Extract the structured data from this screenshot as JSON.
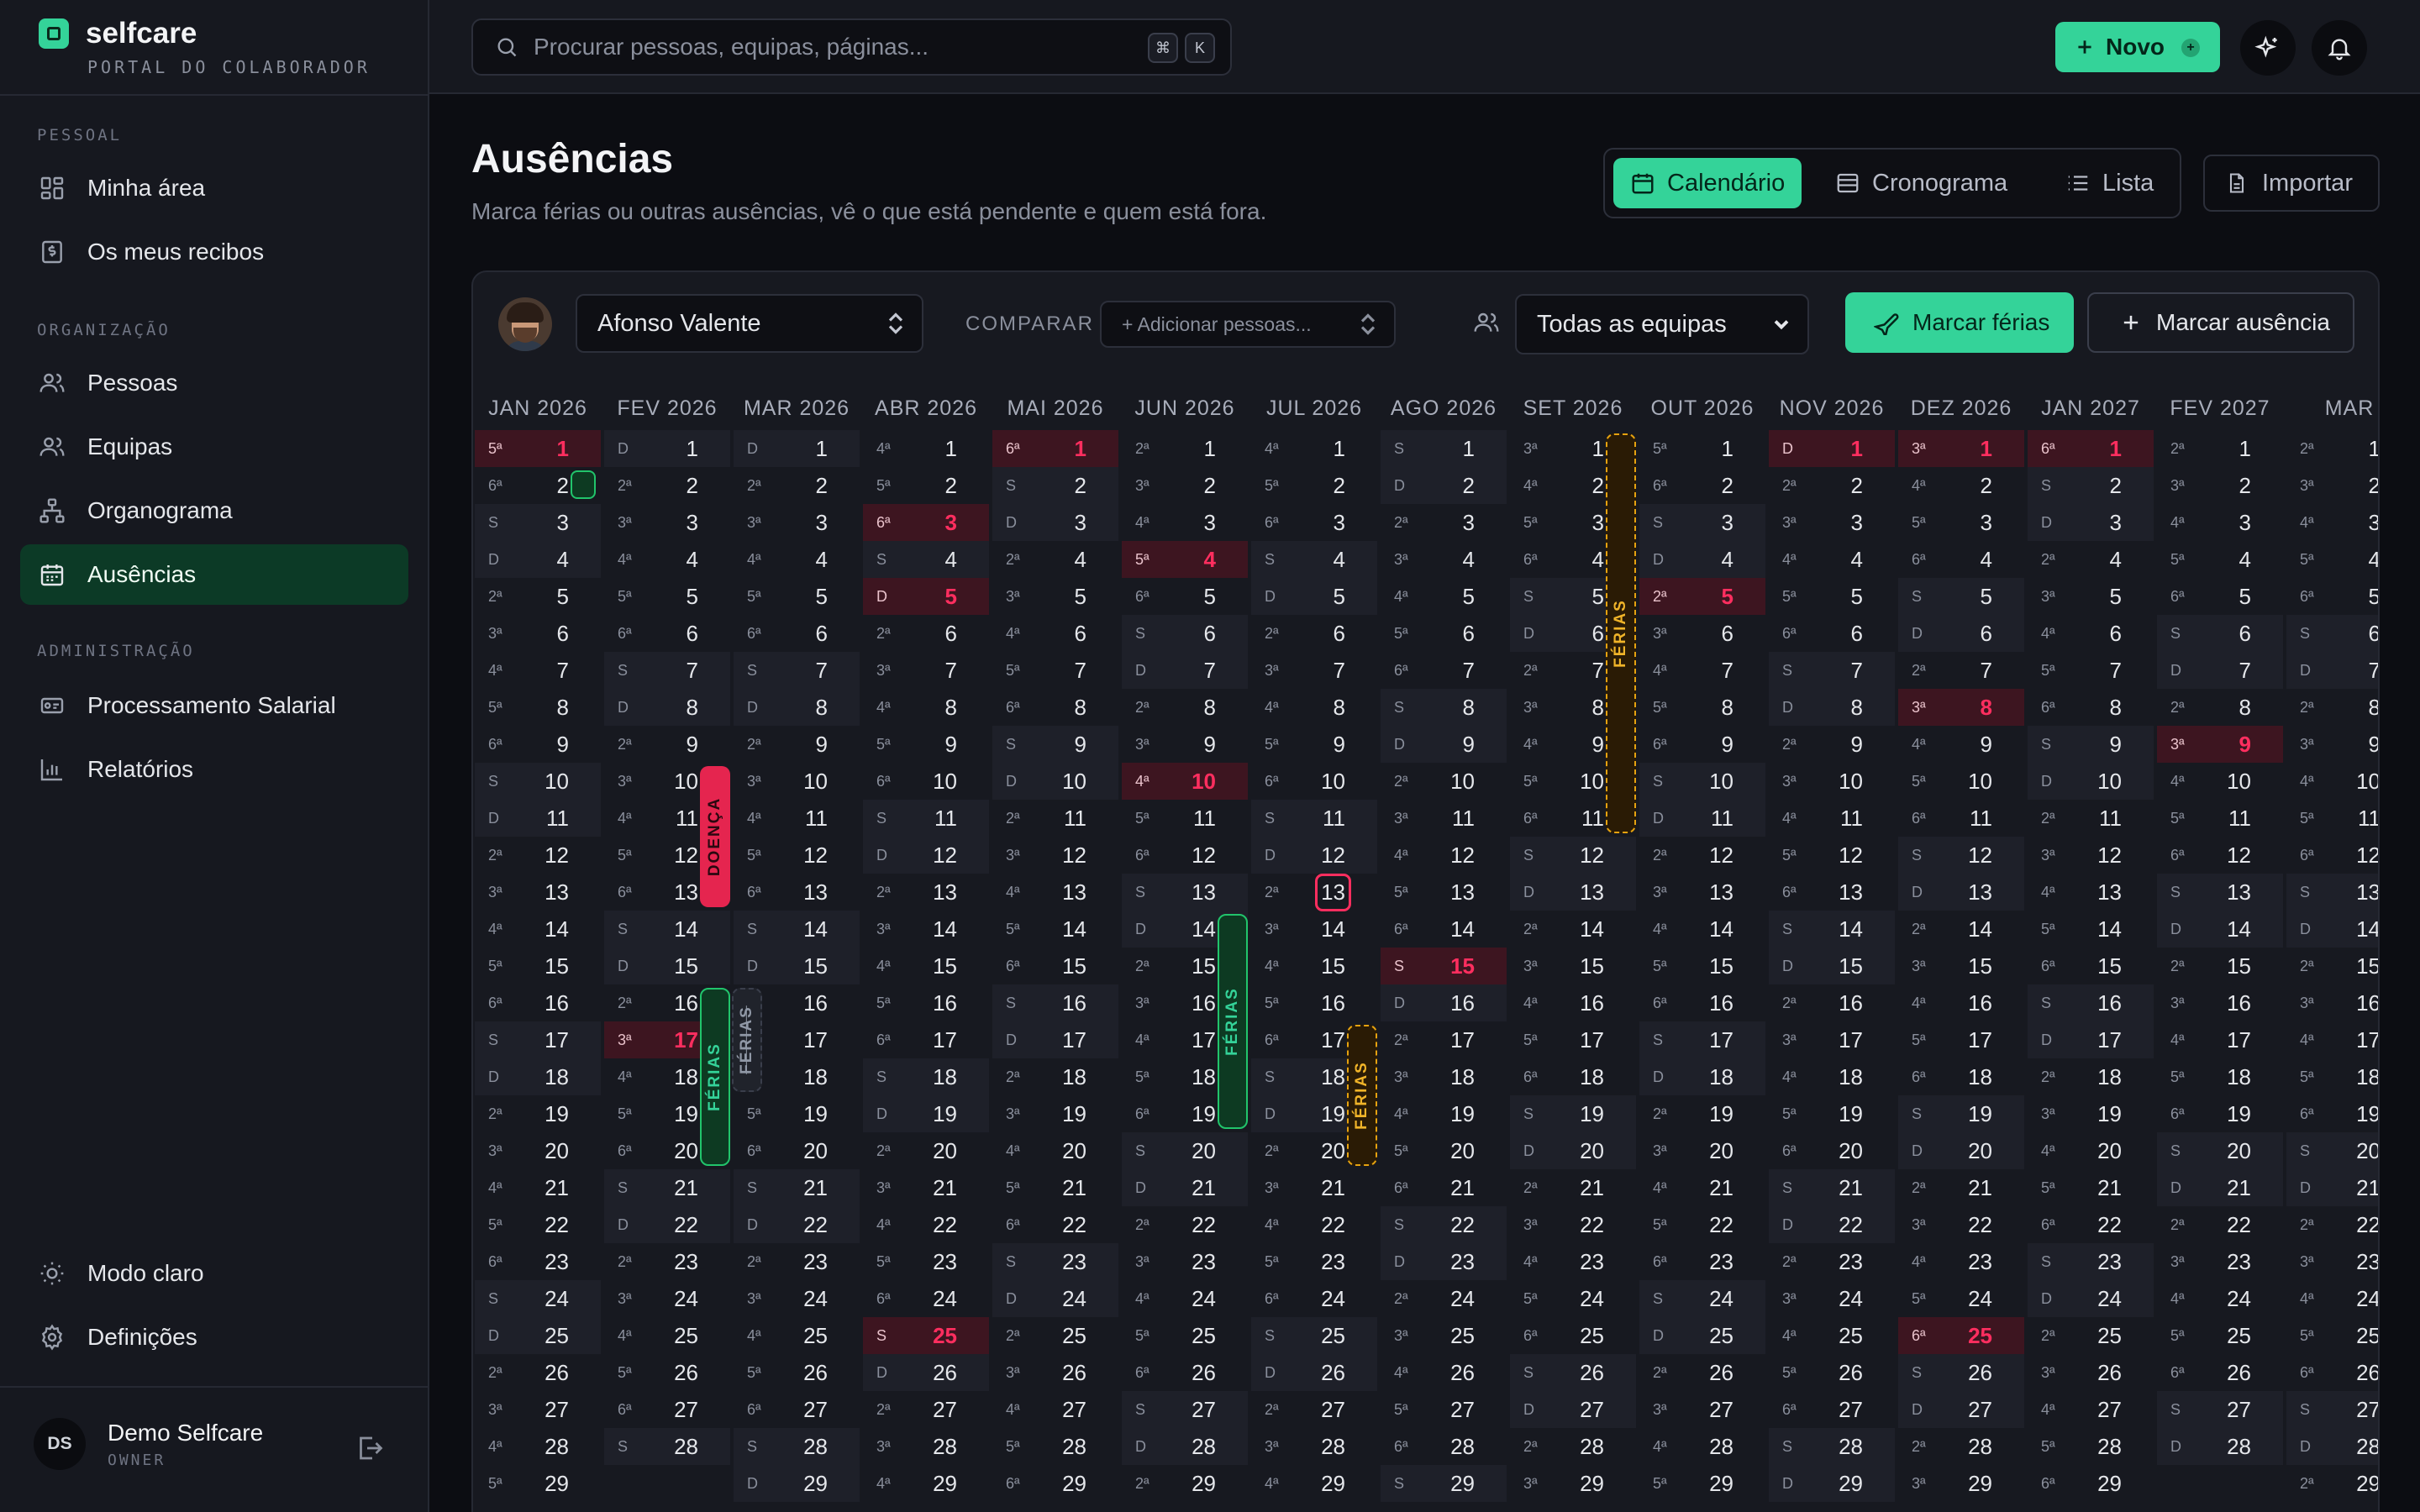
{
  "brand": {
    "name": "selfcare",
    "subtitle": "PORTAL DO COLABORADOR"
  },
  "sidebar": {
    "sections": [
      {
        "title": "PESSOAL",
        "items": [
          {
            "label": "Minha área",
            "icon": "dashboard-icon"
          },
          {
            "label": "Os meus recibos",
            "icon": "receipt-icon"
          }
        ]
      },
      {
        "title": "ORGANIZAÇÃO",
        "items": [
          {
            "label": "Pessoas",
            "icon": "people-icon"
          },
          {
            "label": "Equipas",
            "icon": "team-icon"
          },
          {
            "label": "Organograma",
            "icon": "org-chart-icon"
          },
          {
            "label": "Ausências",
            "icon": "calendar-icon",
            "active": true
          }
        ]
      },
      {
        "title": "ADMINISTRAÇÃO",
        "items": [
          {
            "label": "Processamento Salarial",
            "icon": "payroll-icon"
          },
          {
            "label": "Relatórios",
            "icon": "chart-icon"
          }
        ]
      }
    ],
    "footer": {
      "theme_toggle": "Modo claro",
      "settings": "Definições"
    },
    "user": {
      "initials": "DS",
      "name": "Demo Selfcare",
      "role": "OWNER"
    }
  },
  "topbar": {
    "search_placeholder": "Procurar pessoas, equipas, páginas...",
    "kbd": [
      "⌘",
      "K"
    ],
    "new_button": "Novo",
    "new_badge": "+"
  },
  "page": {
    "title": "Ausências",
    "subtitle": "Marca férias ou outras ausências, vê o que está pendente e quem está fora.",
    "views": [
      "Calendário",
      "Cronograma",
      "Lista"
    ],
    "active_view": "Calendário",
    "import_button": "Importar"
  },
  "toolbar": {
    "person": "Afonso Valente",
    "compare_label": "COMPARAR",
    "compare_placeholder": "+ Adicionar pessoas...",
    "team_filter": "Todas as equipas",
    "mark_vacation": "Marcar férias",
    "mark_absence": "Marcar ausência"
  },
  "calendar": {
    "months": [
      {
        "label": "JAN 2026",
        "year": 2026,
        "month": 1,
        "days": 29
      },
      {
        "label": "FEV 2026",
        "year": 2026,
        "month": 2,
        "days": 28
      },
      {
        "label": "MAR 2026",
        "year": 2026,
        "month": 3,
        "days": 29
      },
      {
        "label": "ABR 2026",
        "year": 2026,
        "month": 4,
        "days": 29
      },
      {
        "label": "MAI 2026",
        "year": 2026,
        "month": 5,
        "days": 29
      },
      {
        "label": "JUN 2026",
        "year": 2026,
        "month": 6,
        "days": 29
      },
      {
        "label": "JUL 2026",
        "year": 2026,
        "month": 7,
        "days": 29
      },
      {
        "label": "AGO 2026",
        "year": 2026,
        "month": 8,
        "days": 29
      },
      {
        "label": "SET 2026",
        "year": 2026,
        "month": 9,
        "days": 29
      },
      {
        "label": "OUT 2026",
        "year": 2026,
        "month": 10,
        "days": 29
      },
      {
        "label": "NOV 2026",
        "year": 2026,
        "month": 11,
        "days": 29
      },
      {
        "label": "DEZ 2026",
        "year": 2026,
        "month": 12,
        "days": 29
      },
      {
        "label": "JAN 2027",
        "year": 2027,
        "month": 1,
        "days": 29
      },
      {
        "label": "FEV 2027",
        "year": 2027,
        "month": 2,
        "days": 28
      },
      {
        "label": "MAR",
        "year": 2027,
        "month": 3,
        "days": 29
      }
    ],
    "weekday_abbr": [
      "D",
      "2ª",
      "3ª",
      "4ª",
      "5ª",
      "6ª",
      "S"
    ],
    "holidays": [
      "2026-01-01",
      "2026-02-17",
      "2026-04-03",
      "2026-04-05",
      "2026-04-25",
      "2026-05-01",
      "2026-06-04",
      "2026-06-10",
      "2026-08-15",
      "2026-10-05",
      "2026-11-01",
      "2026-12-01",
      "2026-12-08",
      "2026-12-25",
      "2027-01-01",
      "2027-02-09"
    ],
    "today": "2026-07-13",
    "absences": [
      {
        "label": "DOENÇA",
        "type": "sick",
        "month": 1,
        "start": 10,
        "end": 13
      },
      {
        "label": "FÉRIAS",
        "type": "vacation-approved",
        "month": 1,
        "start": 16,
        "end": 20
      },
      {
        "label": "FÉRIAS",
        "type": "vacation-cancelled",
        "month": 1,
        "start": 16,
        "end": 18
      },
      {
        "label": "FÉRIAS",
        "type": "vacation-approved",
        "month": 5,
        "start": 14,
        "end": 19
      },
      {
        "label": "FÉRIAS",
        "type": "vacation-pending",
        "month": 6,
        "start": 17,
        "end": 20
      },
      {
        "label": "FÉRIAS",
        "type": "vacation-pending",
        "month": 8,
        "start": 1,
        "end": 11
      }
    ],
    "marked_day": {
      "month": 0,
      "day": 2
    }
  },
  "colors": {
    "accent": "#34d399",
    "holiday": "#ff2e5f",
    "sick": "#e5254f",
    "pending": "#e6a20f",
    "background": "#0c0d12",
    "panel": "#171920"
  }
}
